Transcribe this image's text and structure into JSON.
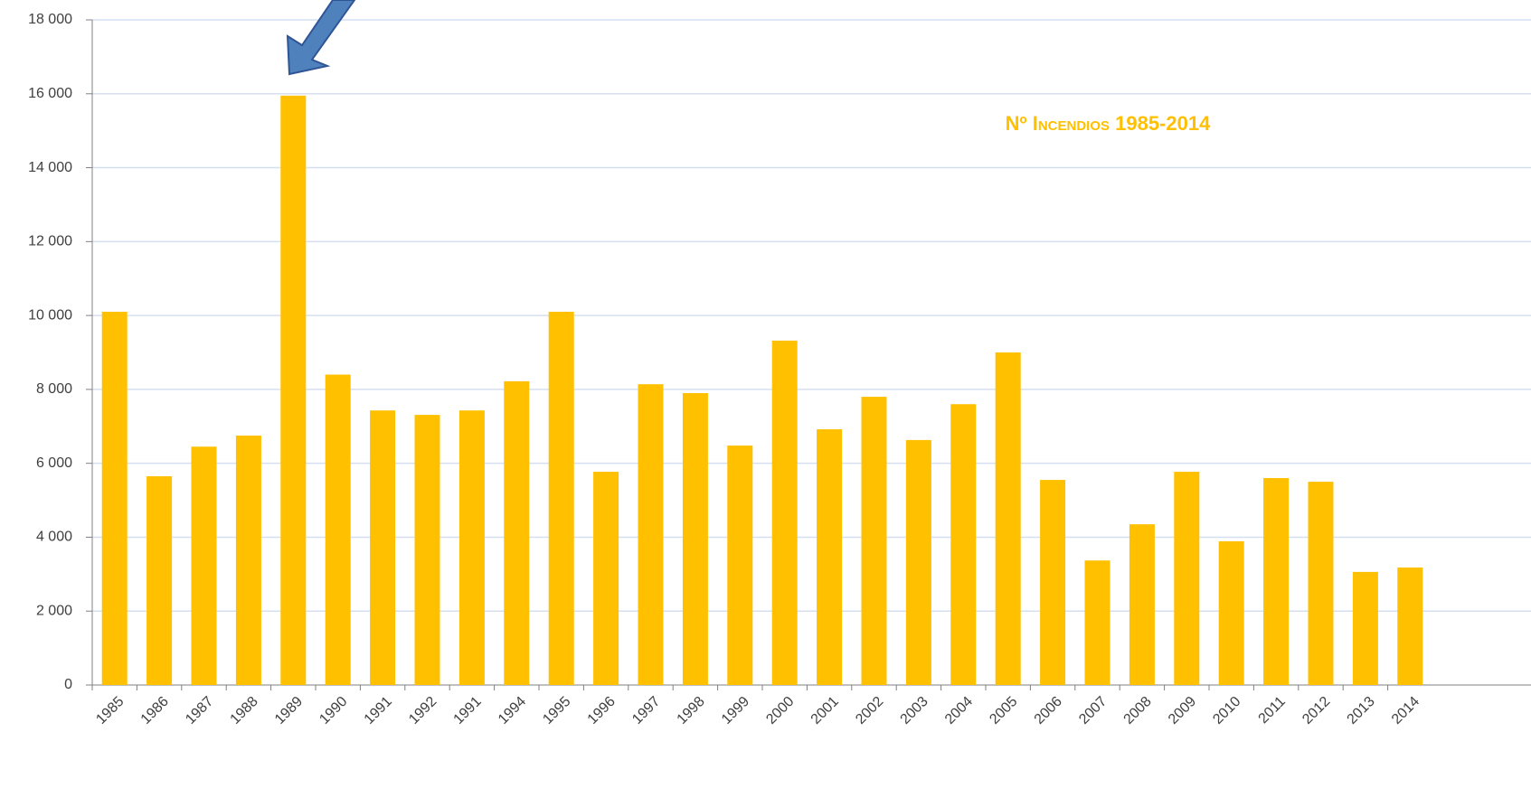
{
  "chart_data": {
    "type": "bar",
    "title": "Nº Incendios 1985-2014",
    "categories": [
      "1985",
      "1986",
      "1987",
      "1988",
      "1989",
      "1990",
      "1991",
      "1992",
      "1991",
      "1994",
      "1995",
      "1996",
      "1997",
      "1998",
      "1999",
      "2000",
      "2001",
      "2002",
      "2003",
      "2004",
      "2005",
      "2006",
      "2007",
      "2008",
      "2009",
      "2010",
      "2011",
      "2012",
      "2013",
      "2014"
    ],
    "values": [
      10100,
      5650,
      6450,
      6750,
      15950,
      8400,
      7430,
      7310,
      7430,
      8220,
      10100,
      5770,
      8140,
      7900,
      6480,
      9320,
      6920,
      7800,
      6630,
      7600,
      9000,
      5550,
      3370,
      4350,
      5770,
      3890,
      5600,
      5500,
      3060,
      3180
    ],
    "color": "#ffc000",
    "ylim": [
      0,
      18000
    ],
    "yticks": [
      0,
      {
        "value": 2000,
        "label": "2 000"
      },
      {
        "value": 4000,
        "label": "4 000"
      },
      {
        "value": 6000,
        "label": "6 000"
      },
      {
        "value": 8000,
        "label": "8 000"
      },
      {
        "value": 10000,
        "label": "10 000"
      },
      {
        "value": 12000,
        "label": "12 000"
      },
      {
        "value": 14000,
        "label": "14 000"
      },
      {
        "value": 16000,
        "label": "16 000"
      },
      {
        "value": 18000,
        "label": "18 000"
      }
    ],
    "grid": true
  }
}
